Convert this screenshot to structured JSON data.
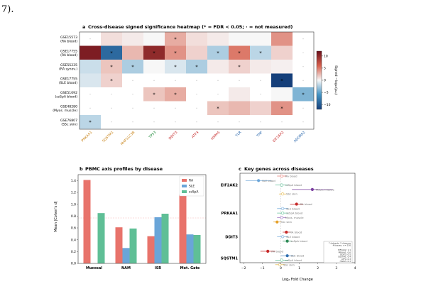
{
  "page": {
    "fragment": "7)."
  },
  "colors": {
    "ra_bar": "#e8736b",
    "sle_bar": "#6aa5d8",
    "ssa_bar": "#5fbf96",
    "dark_red": "#6b0f1a",
    "dark_blue": "#153f7a"
  },
  "panel_a": {
    "label": "a",
    "title": "Cross-disease signed significance heatmap (* = FDR < 0.05; · = not measured)",
    "colorbar_label": "Signed −log₁₀(pₐₙⱼ)",
    "colorbar_ticks": [
      "10",
      "5",
      "0",
      "−5",
      "−10"
    ],
    "chart_data": {
      "type": "heatmap",
      "rows": [
        {
          "name": "GSE15573",
          "sub": "(RA blood)"
        },
        {
          "name": "GSE17755",
          "sub": "(RA blood)"
        },
        {
          "name": "GSE55235",
          "sub": "(RA synov.)"
        },
        {
          "name": "GSE17755",
          "sub": "(SLE blood)"
        },
        {
          "name": "GSE51092",
          "sub": "(ssSpA blood)"
        },
        {
          "name": "GSE48280",
          "sub": "(Myos. muscle)"
        },
        {
          "name": "GSE76807",
          "sub": "(SSc skin)"
        }
      ],
      "columns": [
        {
          "name": "PRKAA1",
          "color": "#c8841a"
        },
        {
          "name": "SQSTM1",
          "color": "#c8841a"
        },
        {
          "name": "MAP1LC3B",
          "color": "#c8841a"
        },
        {
          "name": "TP53",
          "color": "#1f8a3a"
        },
        {
          "name": "DDIT3",
          "color": "#c62828"
        },
        {
          "name": "ATF4",
          "color": "#c62828"
        },
        {
          "name": "HSPA5",
          "color": "#c62828"
        },
        {
          "name": "TLR",
          "color": "#1f5fa8"
        },
        {
          "name": "TNF",
          "color": "#1f5fa8"
        },
        {
          "name": "EIF2AK2",
          "color": "#c62828"
        },
        {
          "name": "ADORA2",
          "color": "#1f5fa8"
        }
      ],
      "values": [
        [
          null,
          1.0,
          0.5,
          0.0,
          3.0,
          1.0,
          0.5,
          0.0,
          0.0,
          4.0,
          null
        ],
        [
          11.0,
          -9.0,
          2.5,
          10.0,
          4.0,
          1.5,
          -2.5,
          5.0,
          -2.0,
          1.5,
          null
        ],
        [
          -1.5,
          2.0,
          -2.5,
          0.0,
          -1.0,
          -2.5,
          0.5,
          1.5,
          0.5,
          0.3,
          null
        ],
        [
          -1.0,
          1.5,
          null,
          null,
          null,
          null,
          null,
          null,
          null,
          -12.0,
          null
        ],
        [
          null,
          null,
          null,
          2.0,
          3.0,
          null,
          null,
          0.5,
          null,
          0.0,
          -4.0
        ],
        [
          null,
          null,
          null,
          null,
          null,
          null,
          2.0,
          2.5,
          1.5,
          4.0,
          null
        ],
        [
          -2.0,
          null,
          null,
          null,
          null,
          null,
          null,
          null,
          null,
          null,
          null
        ]
      ],
      "significant": [
        [
          false,
          false,
          false,
          false,
          true,
          false,
          false,
          false,
          false,
          false,
          false
        ],
        [
          false,
          true,
          false,
          true,
          true,
          false,
          true,
          true,
          true,
          false,
          false
        ],
        [
          false,
          true,
          true,
          false,
          true,
          true,
          false,
          true,
          false,
          false,
          false
        ],
        [
          false,
          true,
          false,
          false,
          false,
          false,
          false,
          false,
          false,
          true,
          false
        ],
        [
          false,
          false,
          false,
          true,
          true,
          false,
          false,
          false,
          false,
          false,
          true
        ],
        [
          false,
          false,
          false,
          false,
          false,
          false,
          true,
          false,
          false,
          true,
          false
        ],
        [
          true,
          false,
          false,
          false,
          false,
          false,
          false,
          false,
          false,
          false,
          false
        ]
      ],
      "color_range": [
        -12,
        12
      ]
    }
  },
  "panel_b": {
    "label": "b",
    "title": "PBMC axis profiles by disease",
    "chart_data": {
      "type": "bar",
      "categories": [
        "Mucosal",
        "NAM",
        "ISR",
        "Met. Gate"
      ],
      "series": [
        {
          "name": "RA",
          "values": [
            1.41,
            0.61,
            0.46,
            1.16
          ]
        },
        {
          "name": "SLE",
          "values": [
            0.0,
            0.26,
            0.78,
            0.49
          ]
        },
        {
          "name": "ssSpA",
          "values": [
            0.85,
            0.59,
            0.84,
            0.48
          ]
        }
      ],
      "ylabel": "Mean |Cohen's d|",
      "ylim": [
        0,
        1.5
      ],
      "yticks": [
        "0.0",
        "0.2",
        "0.4",
        "0.6",
        "0.8",
        "1.0",
        "1.2",
        "1.4"
      ],
      "legend": "top-right"
    }
  },
  "panel_c": {
    "label": "c",
    "title": "Key genes across diseases",
    "xlabel": "Log₂ Fold Change",
    "xticks": [
      "−2",
      "−1",
      "0",
      "1",
      "2",
      "3",
      "4"
    ],
    "note_lines": [
      "7 datasets, 5 diseases",
      "4 tissues, n = 236",
      "",
      "EIF2AK2: 1.1",
      "PRKAA1: 0.6",
      "DDIT3: 0.5",
      "SQSTM1: 0.4",
      "ATF4: 0.3",
      "HSPA5: 0.3"
    ],
    "chart_data": {
      "type": "scatter",
      "xlim": [
        -2.2,
        4.0
      ],
      "groups": [
        {
          "gene": "EIF2AK2",
          "points": [
            {
              "label": "RA blood",
              "lfc": 0.05,
              "ci": [
                -0.2,
                0.3
              ],
              "color": "#e8736b",
              "filled": false
            },
            {
              "label": "SLE blood",
              "lfc": -1.2,
              "ci": [
                -1.9,
                -0.5
              ],
              "color": "#6aa5d8",
              "filled": true
            },
            {
              "label": "ssSpA blood",
              "lfc": 0.05,
              "ci": [
                -0.3,
                0.4
              ],
              "color": "#5fbf96",
              "filled": false
            },
            {
              "label": "Myos. muscle",
              "lfc": 1.7,
              "ci": [
                0.6,
                2.8
              ],
              "color": "#7b3fa0",
              "filled": true
            },
            {
              "label": "SSc skin",
              "lfc": 0.1,
              "ci": [
                -0.1,
                0.3
              ],
              "color": "#e5b84a",
              "filled": false
            }
          ]
        },
        {
          "gene": "PRKAA1",
          "points": [
            {
              "label": "RA blood",
              "lfc": 0.85,
              "ci": [
                0.5,
                1.2
              ],
              "color": "#c62828",
              "filled": true
            },
            {
              "label": "SLE blood",
              "lfc": 0.1,
              "ci": [
                -0.2,
                0.4
              ],
              "color": "#6aa5d8",
              "filled": false
            },
            {
              "label": "ssSpA blood",
              "lfc": 0.1,
              "ci": [
                -0.2,
                0.4
              ],
              "color": "#5fbf96",
              "filled": false
            },
            {
              "label": "Myos. muscle",
              "lfc": 0.05,
              "ci": [
                -0.2,
                0.3
              ],
              "color": "#9b6fbf",
              "filled": false
            },
            {
              "label": "SSc skin",
              "lfc": -0.2,
              "ci": [
                -0.4,
                0.0
              ],
              "color": "#e5a02a",
              "filled": true
            }
          ]
        },
        {
          "gene": "DDIT3",
          "points": [
            {
              "label": "RA blood",
              "lfc": 0.3,
              "ci": [
                0.1,
                0.5
              ],
              "color": "#c62828",
              "filled": true
            },
            {
              "label": "SLE blood",
              "lfc": 0.1,
              "ci": [
                -0.2,
                0.4
              ],
              "color": "#6aa5d8",
              "filled": false
            },
            {
              "label": "ssSpA blood",
              "lfc": 0.35,
              "ci": [
                0.1,
                0.6
              ],
              "color": "#2e8b57",
              "filled": true
            }
          ]
        },
        {
          "gene": "SQSTM1",
          "points": [
            {
              "label": "RA blood",
              "lfc": -0.7,
              "ci": [
                -1.1,
                -0.3
              ],
              "color": "#c62828",
              "filled": true
            },
            {
              "label": "SLE blood",
              "lfc": 0.35,
              "ci": [
                0.0,
                0.7
              ],
              "color": "#2f6fb0",
              "filled": true
            },
            {
              "label": "ssSpA blood",
              "lfc": 0.05,
              "ci": [
                -0.3,
                0.4
              ],
              "color": "#5fbf96",
              "filled": false
            },
            {
              "label": "SSc skin",
              "lfc": -0.05,
              "ci": [
                -0.3,
                0.2
              ],
              "color": "#e5b84a",
              "filled": false
            }
          ]
        }
      ]
    }
  }
}
